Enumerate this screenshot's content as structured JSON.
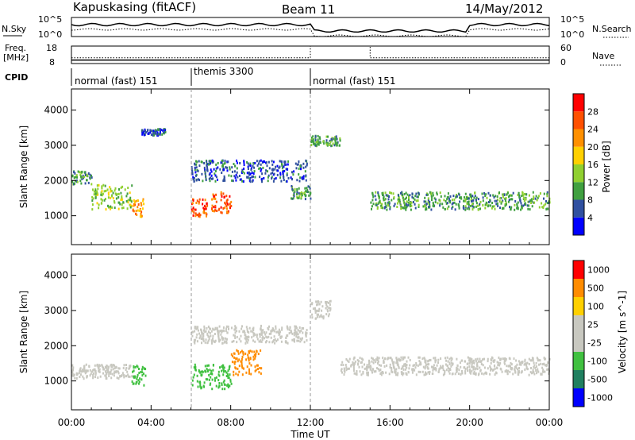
{
  "header": {
    "station": "Kapuskasing (fitACF)",
    "beam": "Beam 11",
    "date": "14/May/2012"
  },
  "panel_labels": {
    "nsky": "N.Sky",
    "nsearch": "N.Search",
    "freq_line1": "Freq.",
    "freq_line2": "[MHz]",
    "nave": "Nave",
    "cpid": "CPID"
  },
  "colors": {
    "power_scale": [
      "#0000ff",
      "#3050a0",
      "#40a040",
      "#90d030",
      "#ffd000",
      "#ff9000",
      "#ff5000",
      "#ff0000"
    ],
    "velocity_scale": [
      "#ff0000",
      "#ff8c00",
      "#ffd000",
      "#c8c8c0",
      "#c8c8c0",
      "#40c040",
      "#208060",
      "#0000ff"
    ],
    "ground_scatter": "#c8c8c0"
  },
  "chart_data": [
    {
      "type": "line",
      "name": "noise",
      "y_left_label": "N.Sky",
      "y_right_label": "N.Search",
      "y_left_ticks": [
        "10^5",
        "10^0"
      ],
      "y_right_ticks": [
        "10^5",
        "10^0"
      ],
      "x_range_hours": [
        0,
        24
      ]
    },
    {
      "type": "line",
      "name": "frequency",
      "y_left_label": "Freq. [MHz]",
      "y_left_ticks": [
        "18",
        "8"
      ],
      "y_right_label": "Nave",
      "y_right_ticks": [
        "60",
        "0"
      ],
      "freq_mhz": {
        "x": [
          0,
          6,
          12,
          15,
          24
        ],
        "y": [
          10,
          10,
          10,
          10,
          10
        ]
      },
      "nave": {
        "x": [
          0,
          6,
          12,
          15,
          24
        ],
        "y": [
          20,
          20,
          60,
          20,
          20
        ]
      }
    },
    {
      "type": "table",
      "name": "cpid",
      "segments": [
        {
          "label": "normal (fast) 151",
          "start_h": 0,
          "end_h": 6
        },
        {
          "label": "themis 3300",
          "start_h": 6,
          "end_h": 12
        },
        {
          "label": "normal (fast) 151",
          "start_h": 12,
          "end_h": 24
        }
      ]
    },
    {
      "type": "heatmap",
      "name": "power",
      "ylabel": "Slant Range [km]",
      "ylim": [
        180,
        4600
      ],
      "yticks": [
        "1000",
        "2000",
        "3000",
        "4000"
      ],
      "colorbar_label": "Power [dB]",
      "colorbar_ticks": [
        "4",
        "8",
        "12",
        "16",
        "20",
        "24",
        "28"
      ],
      "bands": [
        {
          "x": [
            0.0,
            1.0
          ],
          "y": [
            1900,
            2300
          ],
          "level": 2
        },
        {
          "x": [
            1.0,
            3.0
          ],
          "y": [
            1200,
            1900
          ],
          "level": 3
        },
        {
          "x": [
            3.0,
            3.6
          ],
          "y": [
            1000,
            1500
          ],
          "level": 5
        },
        {
          "x": [
            3.5,
            4.7
          ],
          "y": [
            3300,
            3500
          ],
          "level": 1
        },
        {
          "x": [
            6.0,
            6.8
          ],
          "y": [
            1000,
            1500
          ],
          "level": 6
        },
        {
          "x": [
            7.0,
            8.0
          ],
          "y": [
            1100,
            1700
          ],
          "level": 6
        },
        {
          "x": [
            6.0,
            11.8
          ],
          "y": [
            2000,
            2600
          ],
          "level": 1
        },
        {
          "x": [
            11.0,
            12.0
          ],
          "y": [
            1500,
            1900
          ],
          "level": 2
        },
        {
          "x": [
            12.0,
            13.5
          ],
          "y": [
            3000,
            3300
          ],
          "level": 2
        },
        {
          "x": [
            15.0,
            24.0
          ],
          "y": [
            1200,
            1700
          ],
          "level": 2
        }
      ]
    },
    {
      "type": "heatmap",
      "name": "velocity",
      "ylabel": "Slant Range [km]",
      "ylim": [
        180,
        4600
      ],
      "yticks": [
        "1000",
        "2000",
        "3000",
        "4000"
      ],
      "colorbar_label": "Velocity [m s^-1]",
      "colorbar_ticks": [
        "1000",
        "500",
        "100",
        "25",
        "-25",
        "-100",
        "-500",
        "-1000"
      ],
      "bands": [
        {
          "x": [
            0.0,
            3.0
          ],
          "y": [
            1100,
            1500
          ],
          "level": 3
        },
        {
          "x": [
            3.0,
            3.7
          ],
          "y": [
            900,
            1500
          ],
          "level": 5
        },
        {
          "x": [
            6.0,
            8.0
          ],
          "y": [
            800,
            1500
          ],
          "level": 5
        },
        {
          "x": [
            8.0,
            9.5
          ],
          "y": [
            1200,
            1900
          ],
          "level": 1
        },
        {
          "x": [
            6.0,
            11.8
          ],
          "y": [
            2100,
            2600
          ],
          "level": 3
        },
        {
          "x": [
            12.0,
            13.0
          ],
          "y": [
            2800,
            3300
          ],
          "level": 3
        },
        {
          "x": [
            13.5,
            24.0
          ],
          "y": [
            1200,
            1700
          ],
          "level": 3
        }
      ]
    }
  ],
  "x_axis": {
    "label": "Time UT",
    "ticks": [
      "00:00",
      "04:00",
      "08:00",
      "12:00",
      "16:00",
      "20:00",
      "00:00"
    ]
  }
}
